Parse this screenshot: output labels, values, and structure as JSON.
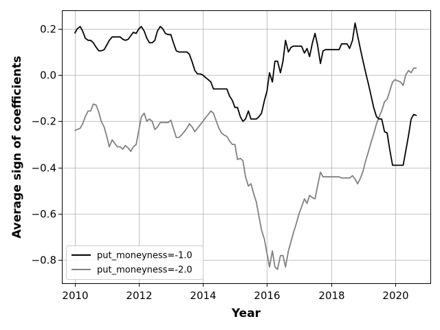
{
  "chart_data": {
    "type": "line",
    "xlabel": "Year",
    "ylabel": "Average sign of coefficients",
    "xlim": [
      2009.6,
      2021.1
    ],
    "ylim": [
      -0.9,
      0.28
    ],
    "xticks": [
      2010,
      2012,
      2014,
      2016,
      2018,
      2020
    ],
    "yticks": [
      0.2,
      0.0,
      -0.2,
      -0.4,
      -0.6,
      -0.8
    ],
    "xtick_labels": [
      "2010",
      "2012",
      "2014",
      "2016",
      "2018",
      "2020"
    ],
    "ytick_labels": [
      "0.2",
      "0.0",
      "−0.2",
      "−0.4",
      "−0.6",
      "−0.8"
    ],
    "grid": true,
    "legend_position": "lower-left",
    "series": [
      {
        "name": "put_moneyness=-1.0",
        "color": "#000000",
        "points": [
          [
            2010.0,
            0.18
          ],
          [
            2010.08,
            0.2
          ],
          [
            2010.17,
            0.21
          ],
          [
            2010.25,
            0.19
          ],
          [
            2010.33,
            0.16
          ],
          [
            2010.42,
            0.15
          ],
          [
            2010.5,
            0.15
          ],
          [
            2010.58,
            0.14
          ],
          [
            2010.67,
            0.12
          ],
          [
            2010.75,
            0.105
          ],
          [
            2010.83,
            0.105
          ],
          [
            2010.92,
            0.11
          ],
          [
            2011.0,
            0.13
          ],
          [
            2011.08,
            0.15
          ],
          [
            2011.17,
            0.165
          ],
          [
            2011.25,
            0.165
          ],
          [
            2011.42,
            0.165
          ],
          [
            2011.5,
            0.155
          ],
          [
            2011.58,
            0.15
          ],
          [
            2011.67,
            0.155
          ],
          [
            2011.75,
            0.17
          ],
          [
            2011.83,
            0.185
          ],
          [
            2011.92,
            0.18
          ],
          [
            2012.0,
            0.2
          ],
          [
            2012.08,
            0.21
          ],
          [
            2012.17,
            0.19
          ],
          [
            2012.25,
            0.16
          ],
          [
            2012.33,
            0.14
          ],
          [
            2012.42,
            0.14
          ],
          [
            2012.5,
            0.15
          ],
          [
            2012.58,
            0.19
          ],
          [
            2012.67,
            0.21
          ],
          [
            2012.75,
            0.2
          ],
          [
            2012.83,
            0.18
          ],
          [
            2012.92,
            0.175
          ],
          [
            2013.0,
            0.175
          ],
          [
            2013.08,
            0.14
          ],
          [
            2013.17,
            0.105
          ],
          [
            2013.25,
            0.1
          ],
          [
            2013.5,
            0.1
          ],
          [
            2013.58,
            0.09
          ],
          [
            2013.67,
            0.055
          ],
          [
            2013.75,
            0.02
          ],
          [
            2013.83,
            0.005
          ],
          [
            2013.92,
            0.005
          ],
          [
            2014.0,
            0.0
          ],
          [
            2014.08,
            -0.01
          ],
          [
            2014.17,
            -0.02
          ],
          [
            2014.25,
            -0.03
          ],
          [
            2014.33,
            -0.06
          ],
          [
            2014.42,
            -0.06
          ],
          [
            2014.75,
            -0.06
          ],
          [
            2014.83,
            -0.09
          ],
          [
            2014.92,
            -0.11
          ],
          [
            2015.0,
            -0.14
          ],
          [
            2015.08,
            -0.14
          ],
          [
            2015.17,
            -0.18
          ],
          [
            2015.25,
            -0.2
          ],
          [
            2015.33,
            -0.19
          ],
          [
            2015.42,
            -0.155
          ],
          [
            2015.5,
            -0.19
          ],
          [
            2015.58,
            -0.19
          ],
          [
            2015.67,
            -0.19
          ],
          [
            2015.75,
            -0.18
          ],
          [
            2015.83,
            -0.165
          ],
          [
            2015.92,
            -0.11
          ],
          [
            2016.0,
            -0.07
          ],
          [
            2016.08,
            0.01
          ],
          [
            2016.17,
            -0.03
          ],
          [
            2016.25,
            0.06
          ],
          [
            2016.33,
            0.06
          ],
          [
            2016.42,
            0.01
          ],
          [
            2016.5,
            0.06
          ],
          [
            2016.58,
            0.15
          ],
          [
            2016.67,
            0.1
          ],
          [
            2016.75,
            0.12
          ],
          [
            2016.83,
            0.125
          ],
          [
            2017.08,
            0.125
          ],
          [
            2017.17,
            0.095
          ],
          [
            2017.25,
            0.115
          ],
          [
            2017.33,
            0.08
          ],
          [
            2017.42,
            0.14
          ],
          [
            2017.5,
            0.18
          ],
          [
            2017.58,
            0.13
          ],
          [
            2017.67,
            0.05
          ],
          [
            2017.75,
            0.105
          ],
          [
            2017.83,
            0.11
          ],
          [
            2018.25,
            0.11
          ],
          [
            2018.33,
            0.135
          ],
          [
            2018.5,
            0.135
          ],
          [
            2018.58,
            0.115
          ],
          [
            2018.67,
            0.15
          ],
          [
            2018.75,
            0.225
          ],
          [
            2018.83,
            0.17
          ],
          [
            2018.92,
            0.11
          ],
          [
            2019.0,
            0.06
          ],
          [
            2019.08,
            0.01
          ],
          [
            2019.17,
            -0.04
          ],
          [
            2019.25,
            -0.09
          ],
          [
            2019.33,
            -0.14
          ],
          [
            2019.42,
            -0.18
          ],
          [
            2019.5,
            -0.19
          ],
          [
            2019.58,
            -0.19
          ],
          [
            2019.67,
            -0.245
          ],
          [
            2019.75,
            -0.25
          ],
          [
            2019.83,
            -0.32
          ],
          [
            2019.92,
            -0.39
          ],
          [
            2020.0,
            -0.39
          ],
          [
            2020.17,
            -0.39
          ],
          [
            2020.25,
            -0.39
          ],
          [
            2020.33,
            -0.33
          ],
          [
            2020.42,
            -0.26
          ],
          [
            2020.5,
            -0.19
          ],
          [
            2020.58,
            -0.17
          ],
          [
            2020.67,
            -0.175
          ]
        ]
      },
      {
        "name": "put_moneyness=-2.0",
        "color": "#808080",
        "points": [
          [
            2010.0,
            -0.24
          ],
          [
            2010.17,
            -0.23
          ],
          [
            2010.25,
            -0.21
          ],
          [
            2010.33,
            -0.18
          ],
          [
            2010.42,
            -0.155
          ],
          [
            2010.5,
            -0.155
          ],
          [
            2010.58,
            -0.125
          ],
          [
            2010.67,
            -0.13
          ],
          [
            2010.75,
            -0.16
          ],
          [
            2010.83,
            -0.2
          ],
          [
            2010.92,
            -0.225
          ],
          [
            2011.0,
            -0.265
          ],
          [
            2011.08,
            -0.31
          ],
          [
            2011.17,
            -0.28
          ],
          [
            2011.25,
            -0.295
          ],
          [
            2011.33,
            -0.31
          ],
          [
            2011.42,
            -0.31
          ],
          [
            2011.5,
            -0.32
          ],
          [
            2011.58,
            -0.305
          ],
          [
            2011.67,
            -0.315
          ],
          [
            2011.75,
            -0.33
          ],
          [
            2011.83,
            -0.31
          ],
          [
            2011.92,
            -0.3
          ],
          [
            2012.0,
            -0.24
          ],
          [
            2012.08,
            -0.18
          ],
          [
            2012.17,
            -0.165
          ],
          [
            2012.25,
            -0.2
          ],
          [
            2012.33,
            -0.19
          ],
          [
            2012.42,
            -0.2
          ],
          [
            2012.5,
            -0.235
          ],
          [
            2012.58,
            -0.225
          ],
          [
            2012.67,
            -0.205
          ],
          [
            2012.75,
            -0.205
          ],
          [
            2012.92,
            -0.205
          ],
          [
            2013.0,
            -0.195
          ],
          [
            2013.08,
            -0.23
          ],
          [
            2013.17,
            -0.27
          ],
          [
            2013.25,
            -0.27
          ],
          [
            2013.33,
            -0.26
          ],
          [
            2013.42,
            -0.245
          ],
          [
            2013.5,
            -0.23
          ],
          [
            2013.58,
            -0.21
          ],
          [
            2013.67,
            -0.225
          ],
          [
            2013.75,
            -0.245
          ],
          [
            2013.83,
            -0.23
          ],
          [
            2013.92,
            -0.215
          ],
          [
            2014.0,
            -0.2
          ],
          [
            2014.08,
            -0.185
          ],
          [
            2014.17,
            -0.17
          ],
          [
            2014.25,
            -0.155
          ],
          [
            2014.33,
            -0.165
          ],
          [
            2014.42,
            -0.2
          ],
          [
            2014.5,
            -0.23
          ],
          [
            2014.58,
            -0.25
          ],
          [
            2014.67,
            -0.26
          ],
          [
            2014.75,
            -0.265
          ],
          [
            2014.83,
            -0.285
          ],
          [
            2014.92,
            -0.3
          ],
          [
            2015.0,
            -0.3
          ],
          [
            2015.08,
            -0.365
          ],
          [
            2015.17,
            -0.36
          ],
          [
            2015.25,
            -0.37
          ],
          [
            2015.33,
            -0.44
          ],
          [
            2015.42,
            -0.48
          ],
          [
            2015.5,
            -0.47
          ],
          [
            2015.58,
            -0.51
          ],
          [
            2015.67,
            -0.55
          ],
          [
            2015.75,
            -0.61
          ],
          [
            2015.83,
            -0.67
          ],
          [
            2015.92,
            -0.71
          ],
          [
            2016.0,
            -0.77
          ],
          [
            2016.08,
            -0.83
          ],
          [
            2016.17,
            -0.76
          ],
          [
            2016.25,
            -0.83
          ],
          [
            2016.33,
            -0.84
          ],
          [
            2016.42,
            -0.78
          ],
          [
            2016.5,
            -0.78
          ],
          [
            2016.58,
            -0.83
          ],
          [
            2016.67,
            -0.76
          ],
          [
            2016.75,
            -0.72
          ],
          [
            2016.83,
            -0.68
          ],
          [
            2016.92,
            -0.64
          ],
          [
            2017.0,
            -0.6
          ],
          [
            2017.08,
            -0.57
          ],
          [
            2017.17,
            -0.535
          ],
          [
            2017.25,
            -0.555
          ],
          [
            2017.33,
            -0.52
          ],
          [
            2017.42,
            -0.53
          ],
          [
            2017.5,
            -0.535
          ],
          [
            2017.58,
            -0.48
          ],
          [
            2017.67,
            -0.42
          ],
          [
            2017.75,
            -0.44
          ],
          [
            2018.0,
            -0.44
          ],
          [
            2018.25,
            -0.44
          ],
          [
            2018.33,
            -0.445
          ],
          [
            2018.58,
            -0.445
          ],
          [
            2018.67,
            -0.435
          ],
          [
            2018.75,
            -0.45
          ],
          [
            2018.83,
            -0.47
          ],
          [
            2018.92,
            -0.445
          ],
          [
            2019.0,
            -0.415
          ],
          [
            2019.08,
            -0.37
          ],
          [
            2019.17,
            -0.33
          ],
          [
            2019.25,
            -0.29
          ],
          [
            2019.33,
            -0.255
          ],
          [
            2019.42,
            -0.21
          ],
          [
            2019.5,
            -0.18
          ],
          [
            2019.58,
            -0.155
          ],
          [
            2019.67,
            -0.115
          ],
          [
            2019.75,
            -0.105
          ],
          [
            2019.83,
            -0.07
          ],
          [
            2019.92,
            -0.03
          ],
          [
            2020.0,
            -0.02
          ],
          [
            2020.08,
            -0.025
          ],
          [
            2020.17,
            -0.03
          ],
          [
            2020.25,
            -0.045
          ],
          [
            2020.33,
            0.0
          ],
          [
            2020.42,
            0.02
          ],
          [
            2020.5,
            0.01
          ],
          [
            2020.58,
            0.03
          ],
          [
            2020.67,
            0.03
          ]
        ]
      }
    ]
  }
}
